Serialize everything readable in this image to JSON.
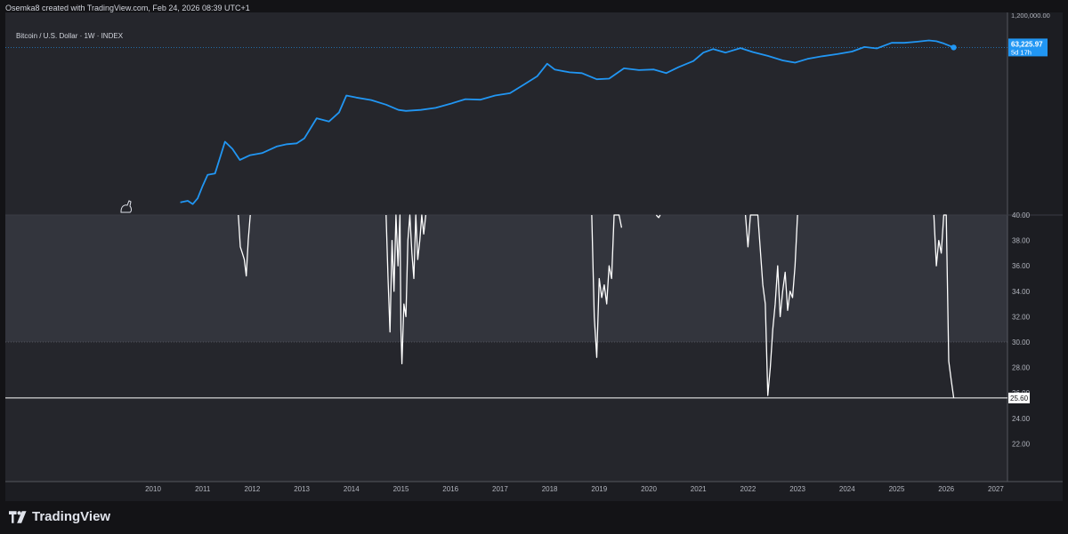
{
  "header": {
    "attribution": "Osemka8 created with TradingView.com, Feb 24, 2026 08:39 UTC+1"
  },
  "symbol": {
    "title": "Bitcoin / U.S. Dollar · 1W · INDEX"
  },
  "footer": {
    "brand": "TradingView"
  },
  "colors": {
    "price_line": "#2196f3",
    "indicator_line": "#ffffff",
    "panel_bg": "#25262c",
    "zone_bg": "#33353d"
  },
  "chart_data": [
    {
      "type": "line",
      "series": [
        {
          "x": [
            2010.55,
            2010.7,
            2010.8,
            2010.9,
            2011.0,
            2011.1,
            2011.25,
            2011.45,
            2011.6,
            2011.75,
            2011.95,
            2012.2,
            2012.5,
            2012.7,
            2012.9,
            2013.05,
            2013.3,
            2013.55,
            2013.75,
            2013.9,
            2014.1,
            2014.4,
            2014.7,
            2014.95,
            2015.1,
            2015.4,
            2015.7,
            2016.0,
            2016.3,
            2016.6,
            2016.9,
            2017.2,
            2017.5,
            2017.75,
            2017.95,
            2018.1,
            2018.4,
            2018.65,
            2018.95,
            2019.2,
            2019.5,
            2019.8,
            2020.1,
            2020.35,
            2020.6,
            2020.9,
            2021.1,
            2021.3,
            2021.55,
            2021.85,
            2022.1,
            2022.4,
            2022.7,
            2022.95,
            2023.2,
            2023.5,
            2023.8,
            2024.1,
            2024.35,
            2024.6,
            2024.9,
            2025.15,
            2025.4,
            2025.65,
            2025.8,
            2025.95,
            2026.15
          ],
          "y": [
            0.07,
            0.08,
            0.06,
            0.1,
            0.3,
            0.8,
            0.9,
            15.0,
            8.0,
            3.0,
            4.5,
            5.5,
            10.0,
            12.0,
            13.0,
            20.0,
            120.0,
            90.0,
            200.0,
            900.0,
            750.0,
            600.0,
            400.0,
            250.0,
            230.0,
            250.0,
            300.0,
            430.0,
            650.0,
            620.0,
            900.0,
            1100.0,
            2500.0,
            5000.0,
            15000.0,
            9000.0,
            7000.0,
            6500.0,
            3800.0,
            4000.0,
            10000.0,
            8500.0,
            9000.0,
            6500.0,
            11000.0,
            19000.0,
            40000.0,
            55000.0,
            40000.0,
            60000.0,
            42000.0,
            30000.0,
            20000.0,
            16500.0,
            23000.0,
            29000.0,
            35000.0,
            44000.0,
            66000.0,
            58000.0,
            95000.0,
            95000.0,
            105000.0,
            118000.0,
            110000.0,
            90000.0,
            63225.97
          ]
        }
      ],
      "scale": "log",
      "last_value": "63,225.97",
      "countdown": "5d 17h",
      "axis_top_label": "1,200,000.00"
    },
    {
      "type": "line",
      "series": [
        {
          "x": [
            2011.72,
            2011.76,
            2011.8,
            2011.84,
            2011.88,
            2011.92,
            2011.96,
            2014.7,
            2014.74,
            2014.78,
            2014.82,
            2014.86,
            2014.9,
            2014.94,
            2014.98,
            2015.0,
            2015.02,
            2015.06,
            2015.1,
            2015.14,
            2015.18,
            2015.22,
            2015.26,
            2015.3,
            2015.34,
            2015.38,
            2015.42,
            2015.46,
            2015.5,
            2018.85,
            2018.9,
            2018.95,
            2019.0,
            2019.05,
            2019.1,
            2019.15,
            2019.2,
            2019.25,
            2019.3,
            2019.4,
            2019.45,
            2020.15,
            2020.17,
            2020.2,
            2020.23,
            2021.95,
            2022.0,
            2022.05,
            2022.2,
            2022.3,
            2022.35,
            2022.4,
            2022.45,
            2022.5,
            2022.55,
            2022.6,
            2022.65,
            2022.7,
            2022.75,
            2022.8,
            2022.85,
            2022.9,
            2022.95,
            2023.0,
            2025.75,
            2025.8,
            2025.85,
            2025.9,
            2025.95,
            2026.0,
            2026.05,
            2026.1,
            2026.15
          ],
          "y": [
            40.0,
            37.5,
            37.0,
            36.5,
            35.2,
            38.0,
            40.0,
            40.0,
            35.0,
            30.8,
            38.0,
            34.0,
            40.0,
            36.0,
            40.0,
            31.0,
            28.3,
            33.0,
            32.0,
            38.0,
            40.0,
            37.0,
            35.0,
            40.0,
            36.5,
            38.0,
            40.0,
            38.5,
            40.0,
            40.0,
            32.0,
            28.8,
            35.0,
            33.5,
            34.5,
            33.0,
            36.0,
            35.0,
            40.0,
            40.0,
            39.0,
            40.0,
            39.9,
            39.8,
            40.0,
            40.0,
            37.5,
            40.0,
            40.0,
            34.5,
            33.0,
            25.8,
            28.0,
            31.0,
            33.0,
            36.0,
            32.0,
            34.0,
            35.5,
            32.5,
            34.0,
            33.5,
            36.0,
            40.0,
            40.0,
            36.0,
            38.0,
            37.0,
            40.0,
            40.0,
            28.5,
            27.0,
            25.6
          ]
        }
      ],
      "ylim": [
        20.0,
        40.0
      ],
      "yticks": [
        "40.00",
        "38.00",
        "36.00",
        "34.00",
        "32.00",
        "30.00",
        "28.00",
        "26.00",
        "24.00",
        "22.00"
      ],
      "zone": [
        30.0,
        40.0
      ],
      "reference_value": 25.6,
      "reference_label": "25.60",
      "last_value": "25.60"
    }
  ],
  "x_axis": {
    "ticks": [
      "2010",
      "2011",
      "2012",
      "2013",
      "2014",
      "2015",
      "2016",
      "2017",
      "2018",
      "2019",
      "2020",
      "2021",
      "2022",
      "2023",
      "2024",
      "2025",
      "2026",
      "2027"
    ]
  }
}
